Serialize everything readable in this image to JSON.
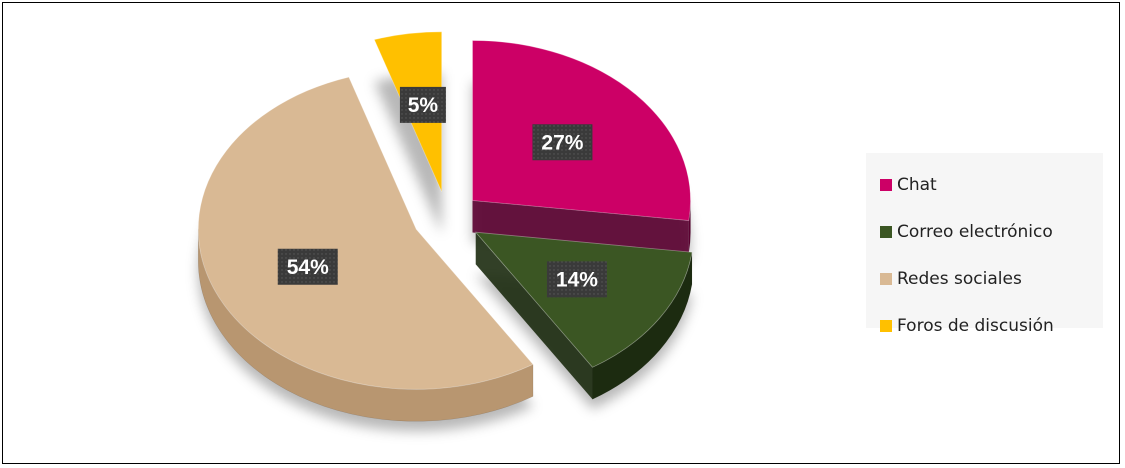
{
  "chart_data": {
    "type": "pie",
    "title": "",
    "slices": [
      {
        "label": "Chat",
        "value": 27,
        "display": "27%",
        "color": "#cc0066",
        "side_color": "#5a0030"
      },
      {
        "label": "Correo electrónico",
        "value": 14,
        "display": "14%",
        "color": "#3b5623",
        "side_color": "#1c2b10"
      },
      {
        "label": "Redes sociales",
        "value": 54,
        "display": "54%",
        "color": "#d9b994",
        "side_color": "#b89670"
      },
      {
        "label": "Foros de discusión",
        "value": 5,
        "display": "5%",
        "color": "#ffc000",
        "side_color": "#a07000"
      }
    ],
    "legend_position": "right",
    "style": "3d-exploded",
    "texture": "parchment"
  }
}
